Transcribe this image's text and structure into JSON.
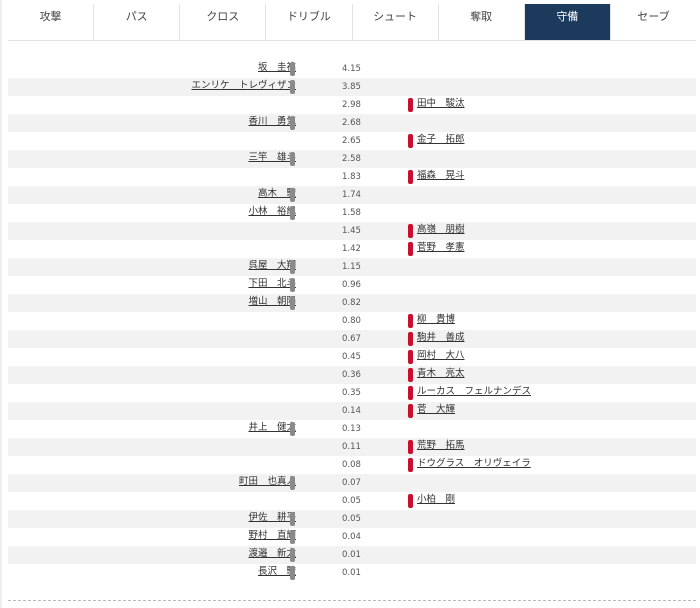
{
  "tabs": [
    {
      "label": "攻撃",
      "active": false
    },
    {
      "label": "パス",
      "active": false
    },
    {
      "label": "クロス",
      "active": false
    },
    {
      "label": "ドリブル",
      "active": false
    },
    {
      "label": "シュート",
      "active": false
    },
    {
      "label": "奪取",
      "active": false
    },
    {
      "label": "守備",
      "active": true
    },
    {
      "label": "セーブ",
      "active": false
    }
  ],
  "colors": {
    "active_tab": "#1c3a5c",
    "left_team_bar": "#8a8a8a",
    "right_team_bar": "#c8102e"
  },
  "rows": [
    {
      "value": "4.15",
      "side": "left",
      "name": "坂　圭祐"
    },
    {
      "value": "3.85",
      "side": "left",
      "name": "エンリケ　トレヴィザン"
    },
    {
      "value": "2.98",
      "side": "right",
      "name": "田中　駿汰"
    },
    {
      "value": "2.68",
      "side": "left",
      "name": "香川　勇気"
    },
    {
      "value": "2.65",
      "side": "right",
      "name": "金子　拓郎"
    },
    {
      "value": "2.58",
      "side": "left",
      "name": "三竿　雄斗"
    },
    {
      "value": "1.83",
      "side": "right",
      "name": "福森　晃斗"
    },
    {
      "value": "1.74",
      "side": "left",
      "name": "高木　駿"
    },
    {
      "value": "1.58",
      "side": "left",
      "name": "小林　裕紀"
    },
    {
      "value": "1.45",
      "side": "right",
      "name": "高嶺　朋樹"
    },
    {
      "value": "1.42",
      "side": "right",
      "name": "菅野　孝憲"
    },
    {
      "value": "1.15",
      "side": "left",
      "name": "呉屋　大翔"
    },
    {
      "value": "0.96",
      "side": "left",
      "name": "下田　北斗"
    },
    {
      "value": "0.82",
      "side": "left",
      "name": "増山　朝陽"
    },
    {
      "value": "0.80",
      "side": "right",
      "name": "柳　貴博"
    },
    {
      "value": "0.67",
      "side": "right",
      "name": "駒井　善成"
    },
    {
      "value": "0.45",
      "side": "right",
      "name": "岡村　大八"
    },
    {
      "value": "0.36",
      "side": "right",
      "name": "青木　亮太"
    },
    {
      "value": "0.35",
      "side": "right",
      "name": "ルーカス　フェルナンデス"
    },
    {
      "value": "0.14",
      "side": "right",
      "name": "菅　大輝"
    },
    {
      "value": "0.13",
      "side": "left",
      "name": "井上　健太"
    },
    {
      "value": "0.11",
      "side": "right",
      "name": "荒野　拓馬"
    },
    {
      "value": "0.08",
      "side": "right",
      "name": "ドウグラス　オリヴェイラ"
    },
    {
      "value": "0.07",
      "side": "left",
      "name": "町田　也真人"
    },
    {
      "value": "0.05",
      "side": "right",
      "name": "小柏　剛"
    },
    {
      "value": "0.05",
      "side": "left",
      "name": "伊佐　耕平"
    },
    {
      "value": "0.04",
      "side": "left",
      "name": "野村　直輝"
    },
    {
      "value": "0.01",
      "side": "left",
      "name": "渡邉　新太"
    },
    {
      "value": "0.01",
      "side": "left",
      "name": "長沢　駿"
    }
  ]
}
